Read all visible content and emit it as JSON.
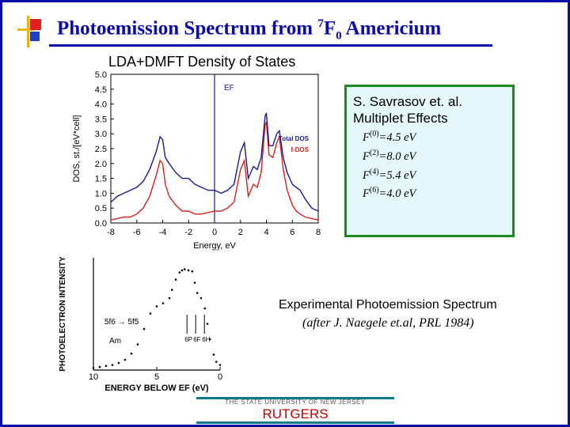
{
  "slide": {
    "title_main": "Photoemission Spectrum from ",
    "title_sup": "7",
    "title_f": "F",
    "title_sub": "0",
    "title_end": " Americium",
    "subtitle": "LDA+DMFT Density of States",
    "box": {
      "line1": "S. Savrasov et. al.",
      "line2": "Multiplet Effects",
      "params": [
        {
          "sym": "F",
          "sup": "(0)",
          "val": "=4.5 eV"
        },
        {
          "sym": "F",
          "sup": "(2)",
          "val": "=8.0 eV"
        },
        {
          "sym": "F",
          "sup": "(4)",
          "val": "=5.4 eV"
        },
        {
          "sym": "F",
          "sup": "(6)",
          "val": "=4.0 eV"
        }
      ]
    },
    "exp_line1": "Experimental Photoemission Spectrum",
    "exp_line2": "(after J. Naegele et.al, PRL 1984)",
    "footer_state": "THE STATE UNIVERSITY OF NEW JERSEY",
    "footer_rutgers": "RUTGERS"
  },
  "colors": {
    "title": "#0a0aa8",
    "total_dos": "#1a1a8c",
    "f_dos": "#d42020",
    "box_border": "#1f8a1f",
    "box_bg": "#e4f7fb",
    "rutgers": "#c00000"
  },
  "chart_data": [
    {
      "type": "line",
      "title": "LDA+DMFT Density of States",
      "xlabel": "Energy, eV",
      "ylabel": "DOS, st./[eV*cell]",
      "xlim": [
        -8,
        8
      ],
      "ylim": [
        0,
        5
      ],
      "xticks": [
        "-8",
        "-6",
        "-4",
        "-2",
        "0",
        "2",
        "4",
        "6",
        "8"
      ],
      "yticks": [
        "0.0",
        "0.5",
        "1.0",
        "1.5",
        "2.0",
        "2.5",
        "3.0",
        "3.5",
        "4.0",
        "4.5",
        "5.0"
      ],
      "annotation": "EF",
      "series": [
        {
          "name": "Total DOS",
          "x": [
            -8,
            -7.5,
            -7,
            -6.5,
            -6,
            -5.5,
            -5,
            -4.5,
            -4.2,
            -4,
            -3.8,
            -3.5,
            -3,
            -2.5,
            -2,
            -1.5,
            -1,
            -0.5,
            0,
            0.5,
            1,
            1.5,
            2,
            2.3,
            2.6,
            3,
            3.3,
            3.6,
            3.9,
            4,
            4.2,
            4.5,
            4.8,
            5,
            5.3,
            5.6,
            6,
            6.3,
            6.6,
            7,
            7.5,
            8
          ],
          "y": [
            0.7,
            0.9,
            1.0,
            1.1,
            1.2,
            1.4,
            1.8,
            2.4,
            2.9,
            2.8,
            2.2,
            2.0,
            1.7,
            1.5,
            1.5,
            1.3,
            1.2,
            1.1,
            1.1,
            1.0,
            1.1,
            1.3,
            2.4,
            2.7,
            1.5,
            1.9,
            1.8,
            2.2,
            3.6,
            3.7,
            2.6,
            2.6,
            3.0,
            3.1,
            2.2,
            1.7,
            1.3,
            1.2,
            1.1,
            0.8,
            0.5,
            0.4
          ]
        },
        {
          "name": "f-DOS",
          "x": [
            -8,
            -7.5,
            -7,
            -6.5,
            -6,
            -5.5,
            -5,
            -4.5,
            -4.2,
            -4,
            -3.8,
            -3.5,
            -3,
            -2.5,
            -2,
            -1.5,
            -1,
            -0.5,
            0,
            0.5,
            1,
            1.5,
            2,
            2.3,
            2.6,
            3,
            3.3,
            3.6,
            3.9,
            4,
            4.2,
            4.5,
            4.8,
            5,
            5.3,
            5.6,
            6,
            6.3,
            6.6,
            7,
            7.5,
            8
          ],
          "y": [
            0.1,
            0.15,
            0.2,
            0.2,
            0.3,
            0.5,
            0.9,
            1.6,
            2.1,
            2.0,
            1.3,
            0.9,
            0.6,
            0.4,
            0.4,
            0.3,
            0.3,
            0.35,
            0.4,
            0.4,
            0.5,
            0.7,
            1.8,
            2.1,
            0.9,
            1.3,
            1.2,
            1.7,
            3.3,
            3.4,
            2.3,
            2.2,
            2.7,
            2.9,
            1.8,
            1.1,
            0.6,
            0.4,
            0.3,
            0.2,
            0.15,
            0.1
          ]
        }
      ],
      "legend_placement": "right"
    },
    {
      "type": "line",
      "xlabel": "ENERGY BELOW EF (eV)",
      "ylabel": "PHOTOELECTRON INTENSITY",
      "xlim": [
        10,
        0
      ],
      "xticks": [
        "10",
        "5",
        "0"
      ],
      "labels": [
        "5f6 → 5f5",
        "Am",
        "6P",
        "6F",
        "6H"
      ],
      "series": [
        {
          "name": "",
          "x": [
            10,
            9.5,
            9,
            8.5,
            8,
            7.5,
            7,
            6.5,
            6,
            5.5,
            5,
            4.5,
            4,
            3.8,
            3.5,
            3.2,
            3.0,
            2.8,
            2.5,
            2.2,
            2.0,
            1.8,
            1.5,
            1.2,
            1.0,
            0.8,
            0.5,
            0.3,
            0
          ],
          "y": [
            0.02,
            0.03,
            0.04,
            0.05,
            0.07,
            0.1,
            0.16,
            0.25,
            0.4,
            0.55,
            0.62,
            0.65,
            0.7,
            0.78,
            0.88,
            0.95,
            0.97,
            0.98,
            0.97,
            0.96,
            0.85,
            0.75,
            0.7,
            0.6,
            0.45,
            0.3,
            0.15,
            0.08,
            0.05
          ]
        }
      ]
    }
  ]
}
